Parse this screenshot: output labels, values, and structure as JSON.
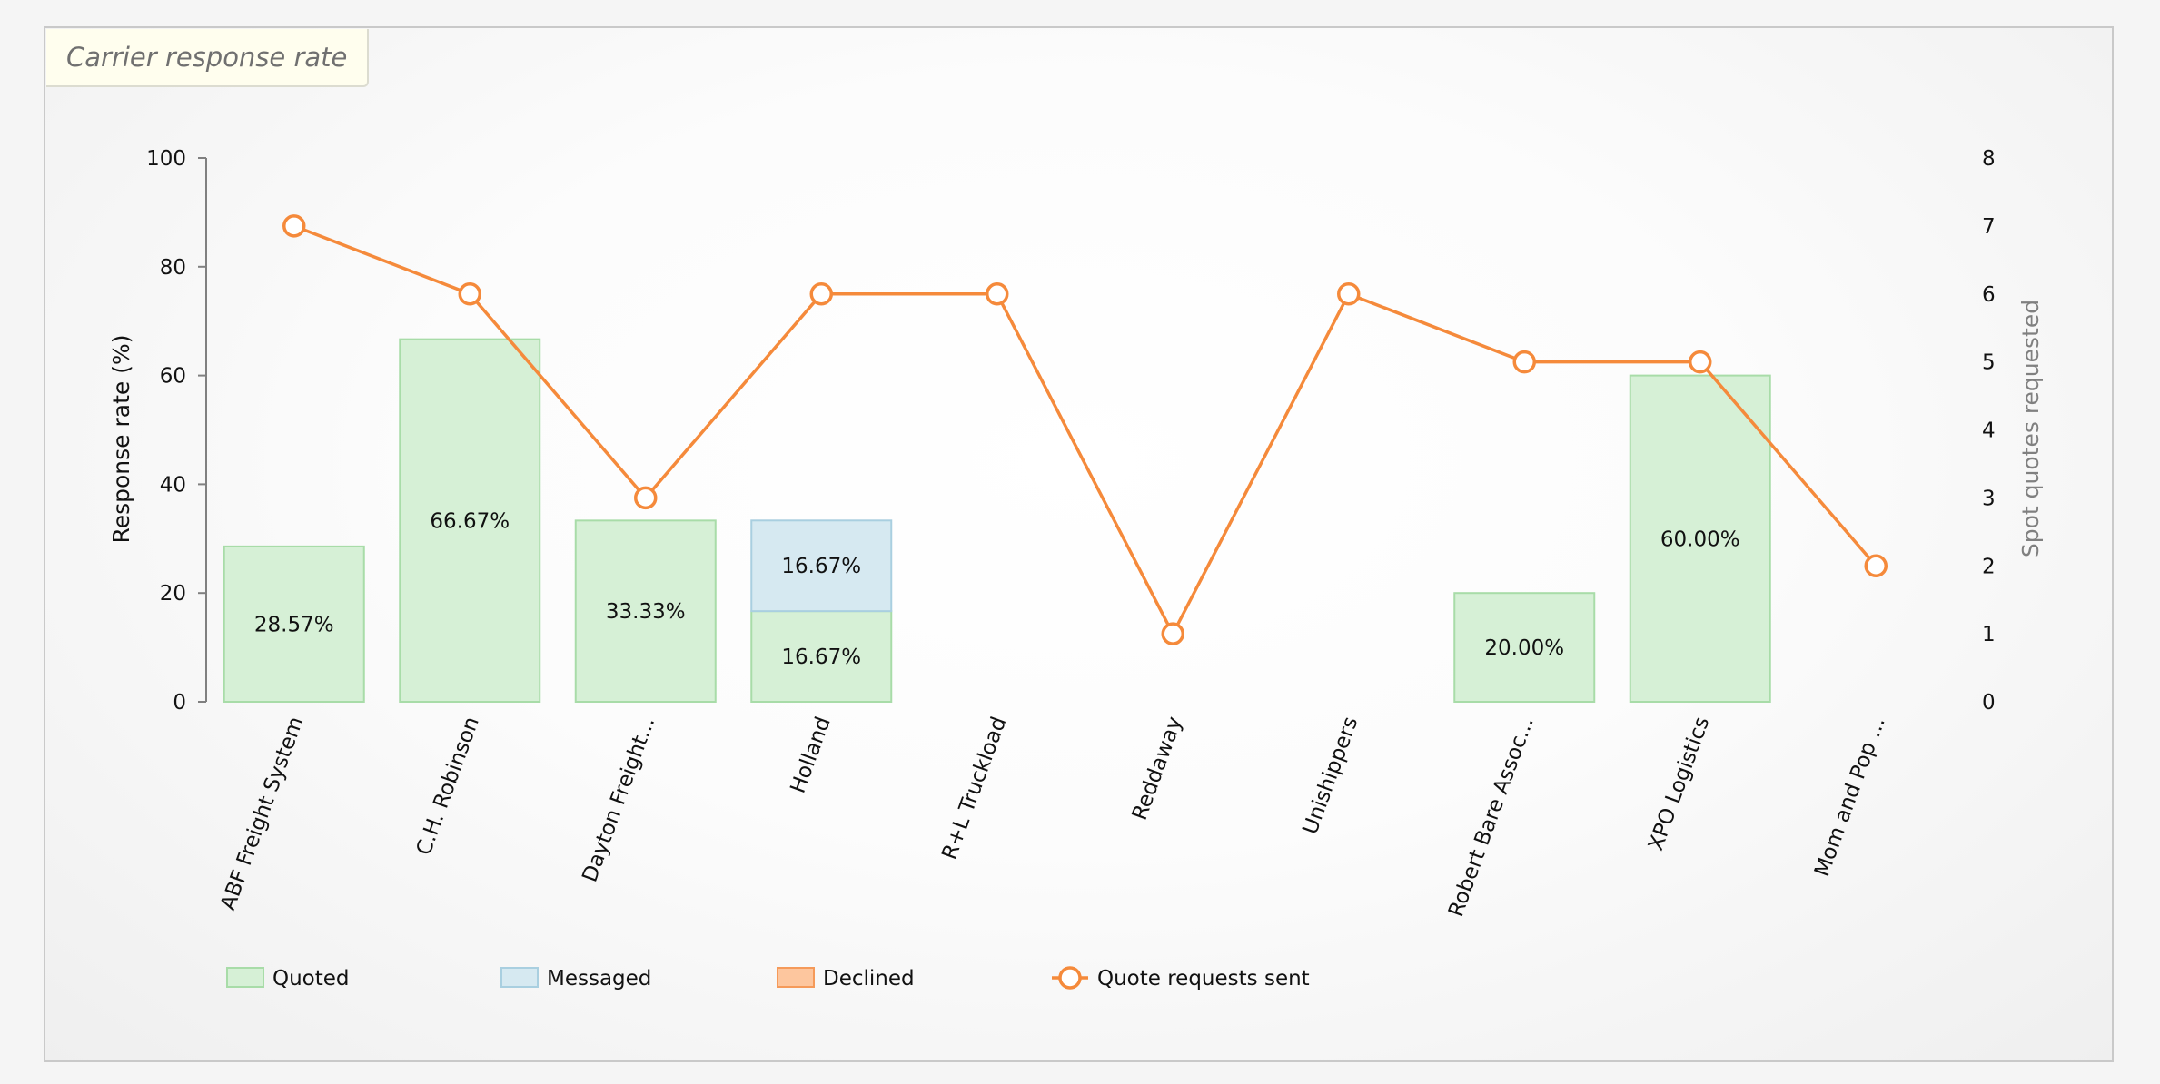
{
  "panel": {
    "title": "Carrier response rate"
  },
  "chart_data": {
    "type": "bar",
    "categories": [
      "ABF Freight System",
      "C.H. Robinson",
      "Dayton Freight...",
      "Holland",
      "R+L Truckload",
      "Reddaway",
      "Unishippers",
      "Robert Bare Assoc...",
      "XPO Logistics",
      "Mom and Pop ..."
    ],
    "series": [
      {
        "name": "Quoted",
        "kind": "bar",
        "axis": "left",
        "color": "#d6f0d6",
        "stroke": "#a8dca8",
        "values": [
          28.57,
          66.67,
          33.33,
          16.67,
          0,
          0,
          0,
          20.0,
          60.0,
          0
        ],
        "labels": [
          "28.57%",
          "66.67%",
          "33.33%",
          "16.67%",
          "",
          "",
          "",
          "20.00%",
          "60.00%",
          ""
        ]
      },
      {
        "name": "Messaged",
        "kind": "bar",
        "axis": "left",
        "color": "#d6e9f1",
        "stroke": "#a9cfe0",
        "values": [
          0,
          0,
          0,
          16.67,
          0,
          0,
          0,
          0,
          0,
          0
        ],
        "labels": [
          "",
          "",
          "",
          "16.67%",
          "",
          "",
          "",
          "",
          "",
          ""
        ]
      },
      {
        "name": "Declined",
        "kind": "bar",
        "axis": "left",
        "color": "#fdc69e",
        "stroke": "#f59a5a",
        "values": [
          0,
          0,
          0,
          0,
          0,
          0,
          0,
          0,
          0,
          0
        ],
        "labels": [
          "",
          "",
          "",
          "",
          "",
          "",
          "",
          "",
          "",
          ""
        ]
      },
      {
        "name": "Quote requests sent",
        "kind": "line",
        "axis": "right",
        "color": "#f58a3b",
        "values": [
          7,
          6,
          3,
          6,
          6,
          1,
          6,
          5,
          5,
          2
        ]
      }
    ],
    "ylabel": "Response rate (%)",
    "ylim": [
      0,
      100
    ],
    "yticks": [
      "0",
      "20",
      "40",
      "60",
      "80",
      "100"
    ],
    "y2label": "Spot quotes requested",
    "y2lim": [
      0,
      8
    ],
    "y2ticks": [
      "0",
      "1",
      "2",
      "3",
      "4",
      "5",
      "6",
      "7",
      "8"
    ],
    "grid": false,
    "legend_position": "bottom-left"
  }
}
